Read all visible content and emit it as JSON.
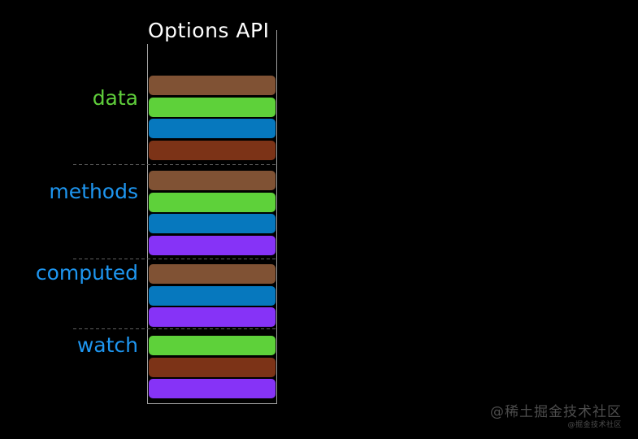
{
  "title": "Options API",
  "title_color": "#ffffff",
  "background": "#000000",
  "box": {
    "border_color": "#a0a0a0"
  },
  "divider_color": "#5f5f5f",
  "palette": {
    "brown": "#805234",
    "green": "#5ed13a",
    "blue": "#0678be",
    "rust": "#7c3317",
    "purple": "#8633f7"
  },
  "sections": [
    {
      "label": "data",
      "label_color": "#5fce3b",
      "bars": [
        "brown",
        "green",
        "blue",
        "rust"
      ]
    },
    {
      "label": "methods",
      "label_color": "#1e96f0",
      "bars": [
        "brown",
        "green",
        "blue",
        "purple"
      ]
    },
    {
      "label": "computed",
      "label_color": "#1e96f0",
      "bars": [
        "brown",
        "blue",
        "purple"
      ]
    },
    {
      "label": "watch",
      "label_color": "#1e96f0",
      "bars": [
        "green",
        "rust",
        "purple"
      ]
    }
  ],
  "watermark": {
    "primary": "@稀土掘金技术社区",
    "secondary": "@掘金技术社区",
    "color": "#4d4d4d"
  }
}
